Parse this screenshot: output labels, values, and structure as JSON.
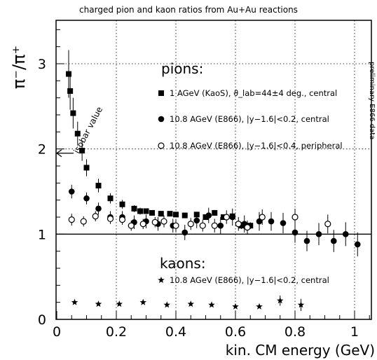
{
  "chart_data": {
    "type": "scatter",
    "title": "charged pion and kaon ratios from Au+Au reactions",
    "xlabel": "kin. CM energy (GeV)",
    "ylabel": "π⁻/π⁺",
    "xlim": [
      0,
      1.07
    ],
    "ylim": [
      0,
      3.5
    ],
    "x_ticks": [
      "0",
      "0.2",
      "0.4",
      "0.6",
      "0.8",
      "1"
    ],
    "y_ticks": [
      "0",
      "1",
      "2",
      "3"
    ],
    "grid": "dotted",
    "side_label": "preliminary E866 data",
    "pions_label": "pions:",
    "kaons_label": "kaons:",
    "isobar": {
      "label": "isobar value",
      "value": 1.95
    },
    "series": [
      {
        "name": "1 AGeV (KaoS), ϑ_lab=44±4 deg., central",
        "marker": "filled-square",
        "points": [
          {
            "x": 0.04,
            "y": 2.88,
            "err": 0.28
          },
          {
            "x": 0.045,
            "y": 2.68,
            "err": 0.22
          },
          {
            "x": 0.055,
            "y": 2.42,
            "err": 0.18
          },
          {
            "x": 0.07,
            "y": 2.18,
            "err": 0.14
          },
          {
            "x": 0.085,
            "y": 1.98,
            "err": 0.12
          },
          {
            "x": 0.1,
            "y": 1.78,
            "err": 0.1
          },
          {
            "x": 0.14,
            "y": 1.57,
            "err": 0.08
          },
          {
            "x": 0.18,
            "y": 1.42,
            "err": 0.06
          },
          {
            "x": 0.22,
            "y": 1.35,
            "err": 0.05
          },
          {
            "x": 0.26,
            "y": 1.3,
            "err": 0.04
          },
          {
            "x": 0.28,
            "y": 1.27,
            "err": 0.04
          },
          {
            "x": 0.3,
            "y": 1.27,
            "err": 0.03
          },
          {
            "x": 0.32,
            "y": 1.25,
            "err": 0.03
          },
          {
            "x": 0.35,
            "y": 1.24,
            "err": 0.03
          },
          {
            "x": 0.38,
            "y": 1.24,
            "err": 0.03
          },
          {
            "x": 0.4,
            "y": 1.23,
            "err": 0.03
          },
          {
            "x": 0.43,
            "y": 1.22,
            "err": 0.03
          },
          {
            "x": 0.47,
            "y": 1.23,
            "err": 0.03
          },
          {
            "x": 0.5,
            "y": 1.2,
            "err": 0.03
          },
          {
            "x": 0.53,
            "y": 1.25,
            "err": 0.03
          },
          {
            "x": 0.56,
            "y": 1.2,
            "err": 0.03
          },
          {
            "x": 0.59,
            "y": 1.21,
            "err": 0.03
          },
          {
            "x": 0.62,
            "y": 1.1,
            "err": 0.04
          },
          {
            "x": 0.65,
            "y": 1.1,
            "err": 0.04
          }
        ]
      },
      {
        "name": "10.8 AGeV (E866), |y−1.6|<0.2, central",
        "marker": "filled-circle",
        "points": [
          {
            "x": 0.05,
            "y": 1.5,
            "err": 0.08
          },
          {
            "x": 0.1,
            "y": 1.42,
            "err": 0.07
          },
          {
            "x": 0.14,
            "y": 1.3,
            "err": 0.07
          },
          {
            "x": 0.18,
            "y": 1.2,
            "err": 0.07
          },
          {
            "x": 0.22,
            "y": 1.2,
            "err": 0.07
          },
          {
            "x": 0.26,
            "y": 1.14,
            "err": 0.08
          },
          {
            "x": 0.3,
            "y": 1.15,
            "err": 0.08
          },
          {
            "x": 0.34,
            "y": 1.12,
            "err": 0.08
          },
          {
            "x": 0.39,
            "y": 1.1,
            "err": 0.08
          },
          {
            "x": 0.43,
            "y": 1.02,
            "err": 0.09
          },
          {
            "x": 0.47,
            "y": 1.16,
            "err": 0.09
          },
          {
            "x": 0.51,
            "y": 1.22,
            "err": 0.09
          },
          {
            "x": 0.55,
            "y": 1.1,
            "err": 0.1
          },
          {
            "x": 0.59,
            "y": 1.2,
            "err": 0.1
          },
          {
            "x": 0.63,
            "y": 1.12,
            "err": 0.1
          },
          {
            "x": 0.68,
            "y": 1.15,
            "err": 0.11
          },
          {
            "x": 0.72,
            "y": 1.15,
            "err": 0.11
          },
          {
            "x": 0.76,
            "y": 1.13,
            "err": 0.12
          },
          {
            "x": 0.8,
            "y": 1.02,
            "err": 0.12
          },
          {
            "x": 0.84,
            "y": 0.92,
            "err": 0.12
          },
          {
            "x": 0.88,
            "y": 1.0,
            "err": 0.13
          },
          {
            "x": 0.93,
            "y": 0.92,
            "err": 0.13
          },
          {
            "x": 0.97,
            "y": 1.0,
            "err": 0.14
          },
          {
            "x": 1.01,
            "y": 0.88,
            "err": 0.14
          }
        ]
      },
      {
        "name": "10.8 AGeV (E866), |y−1.6|<0.4, peripheral",
        "marker": "open-circle",
        "points": [
          {
            "x": 0.05,
            "y": 1.17,
            "err": 0.07
          },
          {
            "x": 0.09,
            "y": 1.15,
            "err": 0.06
          },
          {
            "x": 0.13,
            "y": 1.21,
            "err": 0.06
          },
          {
            "x": 0.18,
            "y": 1.18,
            "err": 0.06
          },
          {
            "x": 0.22,
            "y": 1.17,
            "err": 0.06
          },
          {
            "x": 0.25,
            "y": 1.1,
            "err": 0.06
          },
          {
            "x": 0.29,
            "y": 1.12,
            "err": 0.06
          },
          {
            "x": 0.33,
            "y": 1.14,
            "err": 0.06
          },
          {
            "x": 0.36,
            "y": 1.15,
            "err": 0.07
          },
          {
            "x": 0.4,
            "y": 1.1,
            "err": 0.07
          },
          {
            "x": 0.45,
            "y": 1.12,
            "err": 0.07
          },
          {
            "x": 0.49,
            "y": 1.1,
            "err": 0.07
          },
          {
            "x": 0.53,
            "y": 1.1,
            "err": 0.08
          },
          {
            "x": 0.57,
            "y": 1.2,
            "err": 0.08
          },
          {
            "x": 0.61,
            "y": 1.12,
            "err": 0.08
          },
          {
            "x": 0.64,
            "y": 1.08,
            "err": 0.08
          },
          {
            "x": 0.69,
            "y": 1.2,
            "err": 0.09
          },
          {
            "x": 0.8,
            "y": 1.2,
            "err": 0.1
          },
          {
            "x": 0.91,
            "y": 1.12,
            "err": 0.11
          }
        ]
      }
    ],
    "kaon_series": [
      {
        "name": "10.8 AGeV (E866), |y−1.6|<0.2, central",
        "marker": "star",
        "points": [
          {
            "x": 0.06,
            "y": 0.2,
            "err": 0.0
          },
          {
            "x": 0.14,
            "y": 0.18,
            "err": 0.0
          },
          {
            "x": 0.21,
            "y": 0.18,
            "err": 0.0
          },
          {
            "x": 0.29,
            "y": 0.2,
            "err": 0.0
          },
          {
            "x": 0.37,
            "y": 0.17,
            "err": 0.0
          },
          {
            "x": 0.45,
            "y": 0.18,
            "err": 0.0
          },
          {
            "x": 0.52,
            "y": 0.17,
            "err": 0.0
          },
          {
            "x": 0.6,
            "y": 0.15,
            "err": 0.0
          },
          {
            "x": 0.68,
            "y": 0.15,
            "err": 0.0
          },
          {
            "x": 0.75,
            "y": 0.22,
            "err": 0.06
          },
          {
            "x": 0.82,
            "y": 0.17,
            "err": 0.07
          }
        ]
      }
    ]
  }
}
